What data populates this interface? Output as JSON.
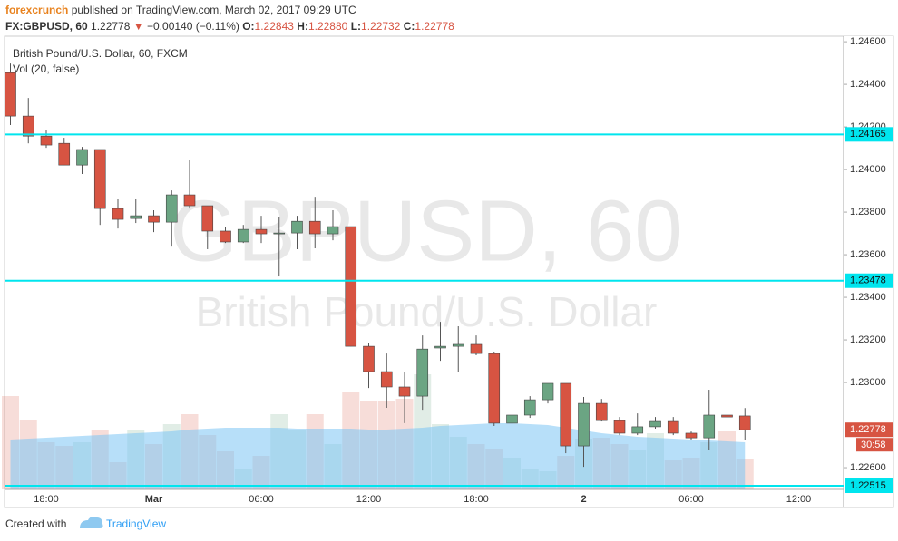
{
  "header": {
    "author": "forexcrunch",
    "published": "published on TradingView.com, March 02, 2017 09:29 UTC",
    "symbol": "FX:GBPUSD, 60",
    "last": "1.22778",
    "change_arrow": "▼",
    "change": "−0.00140 (−0.11%)",
    "quote": [
      "O:",
      "1.22843",
      "H:",
      "1.22880",
      "L:",
      "1.22732",
      "C:",
      "1.22778"
    ]
  },
  "chart_data": {
    "type": "candlestick",
    "title": "British Pound/U.S. Dollar, 60, FXCM",
    "watermark": [
      "GBPUSD, 60",
      "British Pound/U.S. Dollar"
    ],
    "categories": [
      null,
      null,
      "18:00",
      null,
      null,
      null,
      null,
      null,
      "Mar",
      null,
      null,
      null,
      null,
      null,
      "06:00",
      null,
      null,
      null,
      null,
      null,
      "12:00",
      null,
      null,
      null,
      null,
      null,
      "18:00",
      null,
      null,
      null,
      null,
      null,
      "2",
      null,
      null,
      null,
      null,
      null,
      "06:00",
      null,
      null,
      null,
      null,
      null,
      "12:00",
      null,
      null
    ],
    "open": [
      1.24455,
      1.24251,
      1.24157,
      1.24123,
      1.24021,
      1.24094,
      1.23817,
      1.2377,
      1.23783,
      1.23753,
      1.23881,
      1.2383,
      1.23711,
      1.2366,
      1.23719,
      1.23698,
      1.23702,
      1.23757,
      1.23698,
      1.23732,
      1.2317,
      1.23051,
      1.22979,
      1.22936,
      1.23162,
      1.2317,
      1.23179,
      1.23136,
      1.22809,
      1.22847,
      1.22919,
      1.22996,
      1.22702,
      1.22902,
      1.22821,
      1.22762,
      1.22792,
      1.22817,
      1.22762,
      1.2274,
      1.22847,
      1.22843,
      null,
      null,
      null,
      null,
      null
    ],
    "high": [
      1.24498,
      1.24336,
      1.24187,
      1.24149,
      1.24106,
      1.24094,
      1.2386,
      1.2386,
      1.23809,
      1.23902,
      1.24043,
      1.2383,
      1.23732,
      1.2374,
      1.23783,
      1.23775,
      1.23783,
      1.23872,
      1.23809,
      1.23732,
      1.23187,
      1.23136,
      1.23051,
      1.23221,
      1.23285,
      1.23264,
      1.23221,
      1.23145,
      1.22945,
      1.22936,
      1.22996,
      1.22996,
      1.22932,
      1.22923,
      1.22838,
      1.22855,
      1.22838,
      1.22838,
      1.2277,
      1.22966,
      1.22957,
      1.2288,
      null,
      null,
      null,
      null,
      null
    ],
    "low": [
      1.24209,
      1.24123,
      1.24102,
      1.24021,
      1.23979,
      1.2374,
      1.23723,
      1.23749,
      1.23706,
      1.23638,
      1.23817,
      1.23626,
      1.23655,
      1.23655,
      1.23655,
      1.23498,
      1.23626,
      1.2363,
      1.23668,
      1.2317,
      1.22974,
      1.22881,
      1.22809,
      1.22872,
      1.23102,
      1.23051,
      1.23128,
      1.22796,
      1.22809,
      1.22834,
      1.22902,
      1.22668,
      1.22604,
      1.22817,
      1.22753,
      1.22753,
      1.22783,
      1.22753,
      1.22732,
      1.22681,
      1.2283,
      1.22732,
      null,
      null,
      null,
      null,
      null
    ],
    "close": [
      1.24251,
      1.24157,
      1.24115,
      1.24021,
      1.24094,
      1.23817,
      1.23766,
      1.23783,
      1.23753,
      1.23881,
      1.2383,
      1.23711,
      1.2366,
      1.23719,
      1.23698,
      1.23702,
      1.23757,
      1.23698,
      1.23732,
      1.2317,
      1.23051,
      1.22979,
      1.22936,
      1.23157,
      1.2317,
      1.23179,
      1.23136,
      1.22809,
      1.22847,
      1.22919,
      1.22996,
      1.22702,
      1.22902,
      1.22821,
      1.22762,
      1.22792,
      1.22817,
      1.22762,
      1.2274,
      1.22847,
      1.22838,
      1.22778,
      null,
      null,
      null,
      null,
      null
    ],
    "up_color": "#6ba583",
    "down_color": "#d75442",
    "volume": {
      "name": "Vol (20, false)",
      "ylim": [
        0,
        500
      ],
      "ma_color": "#7cc4f4",
      "values": [
        103,
        76,
        52,
        48,
        52,
        66,
        30,
        65,
        50,
        72,
        83,
        60,
        42,
        23,
        37,
        83,
        65,
        83,
        50,
        107,
        97,
        97,
        100,
        127,
        72,
        58,
        50,
        44,
        35,
        22,
        20,
        37,
        56,
        57,
        50,
        43,
        62,
        32,
        35,
        52,
        64,
        33,
        null,
        null,
        null,
        null,
        null
      ],
      "ma": [
        55,
        56,
        57,
        58,
        59,
        60,
        61,
        62,
        63,
        64,
        66,
        67,
        68,
        68,
        68,
        68,
        67,
        67,
        67,
        67,
        66,
        66,
        67,
        68,
        70,
        71,
        72,
        73,
        73,
        72,
        71,
        68,
        65,
        62,
        60,
        58,
        57,
        56,
        55,
        54,
        53,
        52,
        null,
        null,
        null,
        null,
        null
      ]
    },
    "levels": [
      1.24165,
      1.23478,
      1.22515
    ],
    "level_color": "#00e5ee",
    "countdown": "30:58",
    "ylim": [
      1.22498,
      1.24626
    ],
    "yticks": [
      {
        "value": 1.226,
        "label": "1.22600"
      },
      {
        "value": 1.23,
        "label": "1.23000"
      },
      {
        "value": 1.232,
        "label": "1.23200"
      },
      {
        "value": 1.234,
        "label": "1.23400"
      },
      {
        "value": 1.236,
        "label": "1.23600"
      },
      {
        "value": 1.238,
        "label": "1.23800"
      },
      {
        "value": 1.24,
        "label": "1.24000"
      },
      {
        "value": 1.242,
        "label": "1.24200"
      },
      {
        "value": 1.244,
        "label": "1.24400"
      },
      {
        "value": 1.246,
        "label": "1.24600"
      }
    ]
  },
  "footer": {
    "created": "Created with",
    "brand": "TradingView"
  }
}
